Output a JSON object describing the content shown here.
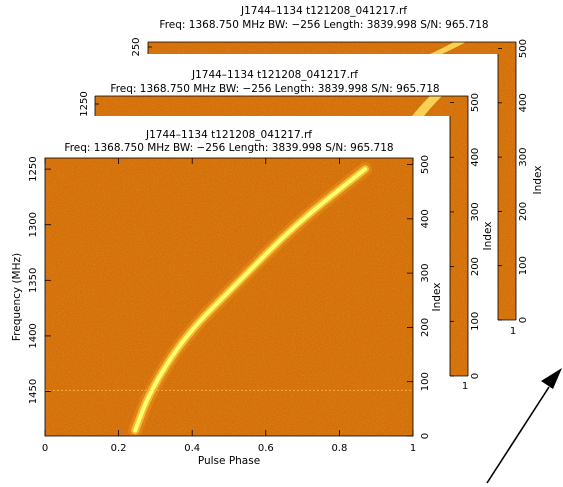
{
  "panels": [
    {
      "id": "back",
      "title": "J1744–1134 t121208_041217.rf",
      "subtitle": "Freq: 1368.750 MHz BW: −256 Length: 3839.998 S/N: 965.718",
      "left_ticks": [
        "250"
      ],
      "index_ticks": [
        "0",
        "100",
        "200",
        "300",
        "400",
        "500"
      ],
      "index_label": "Index",
      "bottom_ticks": [
        "1"
      ]
    },
    {
      "id": "middle",
      "title": "J1744–1134 t121208_041217.rf",
      "subtitle": "Freq: 1368.750 MHz BW: −256 Length: 3839.998 S/N: 965.718",
      "left_ticks": [
        "1250"
      ],
      "index_ticks": [
        "0",
        "100",
        "200",
        "300",
        "400",
        "500"
      ],
      "index_label": "Index",
      "bottom_ticks": [
        "1"
      ]
    },
    {
      "id": "front",
      "title": "J1744–1134 t121208_041217.rf",
      "subtitle": "Freq: 1368.750 MHz BW: −256 Length: 3839.998 S/N: 965.718",
      "index_ticks": [
        "0",
        "100",
        "200",
        "300",
        "400",
        "500"
      ],
      "index_label": "Index"
    }
  ],
  "colors": {
    "background": "#d4700a",
    "signal": "#ffff70",
    "ink": "#000000"
  },
  "chart_data": {
    "type": "heatmap",
    "title": "J1744–1134 t121208_041217.rf",
    "subtitle": "Freq: 1368.750 MHz BW: −256 Length: 3839.998 S/N: 965.718",
    "xlabel": "Pulse Phase",
    "ylabel": "Frequency (MHz)",
    "right_label": "Index",
    "xlim": [
      0,
      1
    ],
    "ylim": [
      1490,
      1240
    ],
    "right_lim": [
      0,
      512
    ],
    "xticks": [
      0,
      0.2,
      0.4,
      0.6,
      0.8,
      1
    ],
    "yticks": [
      1250,
      1300,
      1350,
      1400,
      1450
    ],
    "right_ticks": [
      0,
      100,
      200,
      300,
      400,
      500
    ],
    "signal_track": {
      "frequency": [
        1485,
        1450,
        1400,
        1350,
        1300,
        1250
      ],
      "phase": [
        0.245,
        0.285,
        0.38,
        0.53,
        0.68,
        0.87
      ]
    },
    "rfi_band_frequency": 1449
  }
}
